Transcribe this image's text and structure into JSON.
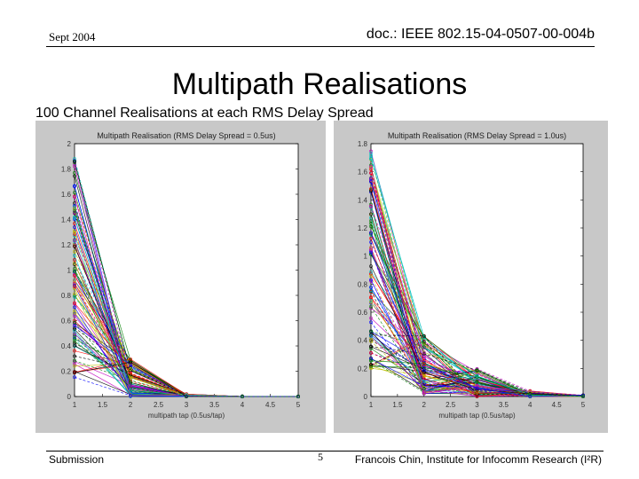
{
  "header": {
    "date": "Sept 2004",
    "doc_id": "doc.: IEEE 802.15-04-0507-00-004b"
  },
  "title": "Multipath Realisations",
  "subtitle": "100 Channel Realisations at each RMS Delay Spread",
  "footer": {
    "left": "Submission",
    "page": "5",
    "right": "Francois Chin, Institute for Infocomm Research (I²R)"
  },
  "chart_data": [
    {
      "type": "line",
      "title": "Multipath Realisation (RMS Delay Spread = 0.5us)",
      "xlabel": "multipath tap (0.5us/tap)",
      "ylabel": "",
      "xlim": [
        1,
        5
      ],
      "ylim": [
        0,
        2
      ],
      "x_ticks": [
        "1",
        "1.5",
        "2",
        "2.5",
        "3",
        "3.5",
        "4",
        "4.5",
        "5"
      ],
      "y_ticks": [
        "0",
        "0.2",
        "0.4",
        "0.6",
        "0.8",
        "1",
        "1.2",
        "1.4",
        "1.6",
        "1.8",
        "2"
      ],
      "x": [
        1,
        2,
        3,
        4,
        5
      ],
      "series_count": 100,
      "tap_ranges": [
        [
          0.15,
          1.9
        ],
        [
          0.0,
          0.3
        ],
        [
          0.0,
          0.02
        ],
        [
          0.0,
          0.0
        ],
        [
          0.0,
          0.0
        ]
      ],
      "colors": [
        "#0000ff",
        "#008000",
        "#ff0000",
        "#00bfbf",
        "#bf00bf",
        "#bfbf00",
        "#000000"
      ]
    },
    {
      "type": "line",
      "title": "Multipath Realisation (RMS Delay Spread = 1.0us)",
      "xlabel": "multipath tap (0.5us/tap)",
      "ylabel": "",
      "xlim": [
        1,
        5
      ],
      "ylim": [
        0,
        1.8
      ],
      "x_ticks": [
        "1",
        "1.5",
        "2",
        "2.5",
        "3",
        "3.5",
        "4",
        "4.5",
        "5"
      ],
      "y_ticks": [
        "0",
        "0.2",
        "0.4",
        "0.6",
        "0.8",
        "1",
        "1.2",
        "1.4",
        "1.6",
        "1.8"
      ],
      "x": [
        1,
        2,
        3,
        4,
        5
      ],
      "series_count": 100,
      "tap_ranges": [
        [
          0.2,
          1.75
        ],
        [
          0.02,
          0.45
        ],
        [
          0.0,
          0.2
        ],
        [
          0.0,
          0.04
        ],
        [
          0.0,
          0.01
        ]
      ],
      "colors": [
        "#0000ff",
        "#008000",
        "#ff0000",
        "#00bfbf",
        "#bf00bf",
        "#bfbf00",
        "#000000"
      ]
    }
  ]
}
